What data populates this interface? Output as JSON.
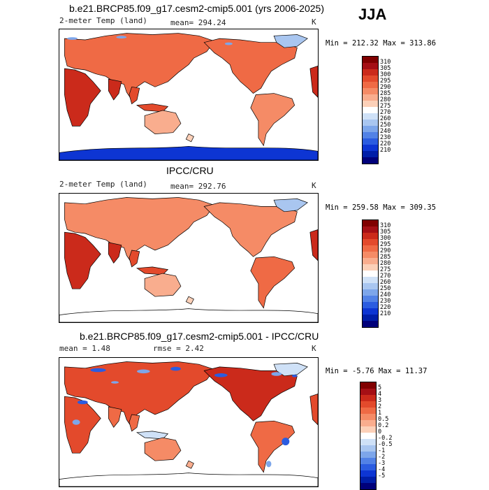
{
  "season": "JJA",
  "panels": [
    {
      "title": "b.e21.BRCP85.f09_g17.cesm2-cmip5.001 (yrs 2006-2025)",
      "left_label": "2-meter Temp (land)",
      "stat_label": "mean=",
      "stat_value": "294.24",
      "stat2_label": "",
      "stat2_value": "",
      "units": "K",
      "min_label": "Min =",
      "min_value": "212.32",
      "max_label": "Max =",
      "max_value": "313.86",
      "scale": "abs",
      "antarctica": true
    },
    {
      "title": "IPCC/CRU",
      "left_label": "2-meter Temp (land)",
      "stat_label": "mean=",
      "stat_value": "292.76",
      "stat2_label": "",
      "stat2_value": "",
      "units": "K",
      "min_label": "Min =",
      "min_value": "259.58",
      "max_label": "Max =",
      "max_value": "309.35",
      "scale": "abs",
      "antarctica": false
    },
    {
      "title": "b.e21.BRCP85.f09_g17.cesm2-cmip5.001 - IPCC/CRU",
      "left_label": "",
      "stat_label": "mean =",
      "stat_value": "1.48",
      "stat2_label": "rmse =",
      "stat2_value": "2.42",
      "units": "K",
      "min_label": "Min =",
      "min_value": "-5.76",
      "max_label": "Max =",
      "max_value": "11.37",
      "scale": "diff",
      "antarctica": false
    }
  ],
  "colorbars": {
    "abs": {
      "labels": [
        "310",
        "305",
        "300",
        "295",
        "290",
        "285",
        "280",
        "275",
        "270",
        "260",
        "250",
        "240",
        "230",
        "220",
        "210"
      ],
      "colors": [
        "#800000",
        "#a50f15",
        "#cb2a1b",
        "#e34a2c",
        "#ef6a45",
        "#f58b66",
        "#f9ad8e",
        "#fcd0b8",
        "#ffffff",
        "#cfe1f7",
        "#a9c6f0",
        "#7da6ea",
        "#5282e6",
        "#2b5ce0",
        "#0d35d3",
        "#001ea8",
        "#00007a"
      ]
    },
    "diff": {
      "labels": [
        "5",
        "4",
        "3",
        "2",
        "1",
        "0.5",
        "0.2",
        "0",
        "-0.2",
        "-0.5",
        "-1",
        "-2",
        "-3",
        "-4",
        "-5"
      ],
      "colors": [
        "#800000",
        "#a50f15",
        "#cb2a1b",
        "#e34a2c",
        "#ef6a45",
        "#f58b66",
        "#f9ad8e",
        "#fcd0b8",
        "#ffffff",
        "#cfe1f7",
        "#a9c6f0",
        "#7da6ea",
        "#5282e6",
        "#2b5ce0",
        "#0d35d3",
        "#001ea8",
        "#00007a"
      ]
    }
  }
}
